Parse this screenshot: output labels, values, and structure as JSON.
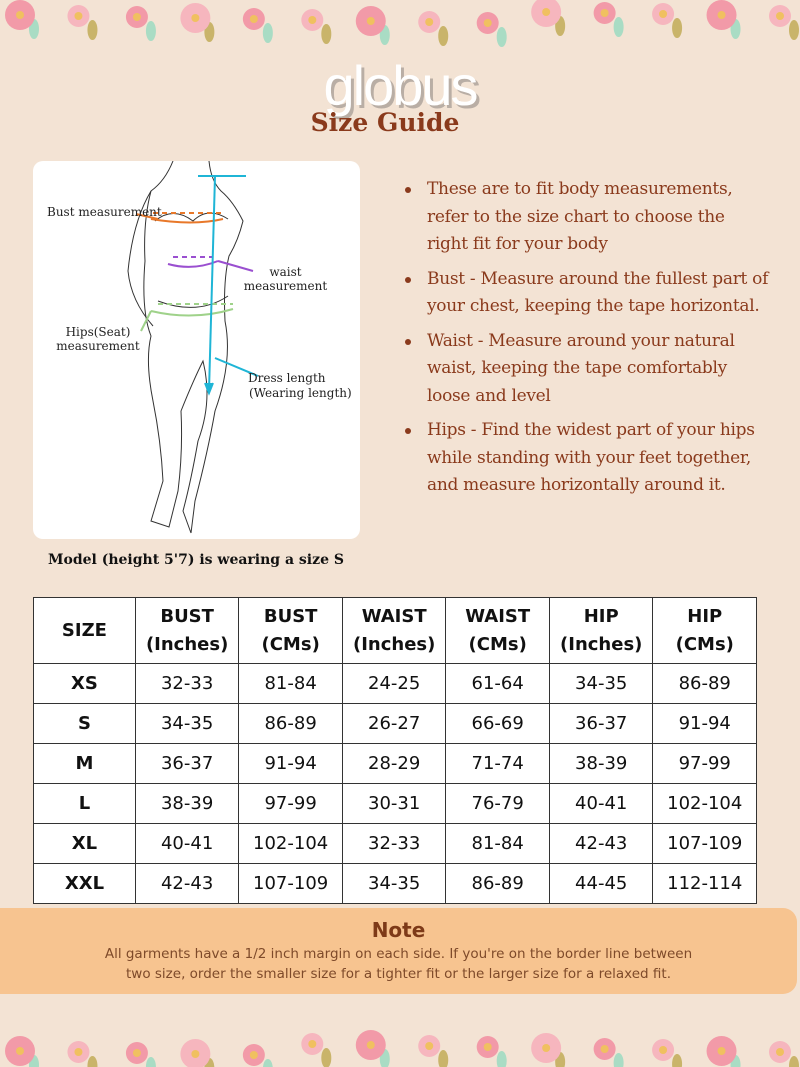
{
  "brand": {
    "logo": "globus"
  },
  "header": {
    "title": "Size Guide"
  },
  "figure": {
    "labels": {
      "bust": "Bust measurement",
      "waist": "waist measurement",
      "hips": "Hips(Seat) measurement",
      "dress_line1": "Dress length",
      "dress_line2": "(Wearing length)"
    },
    "colors": {
      "bust": "#e8782a",
      "waist": "#9a4fd0",
      "hips": "#9fd28a",
      "length": "#1fb5d6"
    },
    "caption": "Model (height 5'7) is wearing a size S"
  },
  "instructions": [
    "These are to fit body measurements, refer to the size chart to choose the right fit for your body",
    "Bust - Measure around the fullest part of your chest, keeping the tape horizontal.",
    "Waist - Measure around your natural waist, keeping the tape comfortably loose and level",
    "Hips - Find the widest part of your hips while standing with your feet together, and measure horizontally around it."
  ],
  "table": {
    "headers": [
      [
        "SIZE",
        ""
      ],
      [
        "BUST",
        "(Inches)"
      ],
      [
        "BUST",
        "(CMs)"
      ],
      [
        "WAIST",
        "(Inches)"
      ],
      [
        "WAIST",
        "(CMs)"
      ],
      [
        "HIP",
        "(Inches)"
      ],
      [
        "HIP",
        "(CMs)"
      ]
    ],
    "rows": [
      [
        "XS",
        "32-33",
        "81-84",
        "24-25",
        "61-64",
        "34-35",
        "86-89"
      ],
      [
        "S",
        "34-35",
        "86-89",
        "26-27",
        "66-69",
        "36-37",
        "91-94"
      ],
      [
        "M",
        "36-37",
        "91-94",
        "28-29",
        "71-74",
        "38-39",
        "97-99"
      ],
      [
        "L",
        "38-39",
        "97-99",
        "30-31",
        "76-79",
        "40-41",
        "102-104"
      ],
      [
        "XL",
        "40-41",
        "102-104",
        "32-33",
        "81-84",
        "42-43",
        "107-109"
      ],
      [
        "XXL",
        "42-43",
        "107-109",
        "34-35",
        "86-89",
        "44-45",
        "112-114"
      ]
    ]
  },
  "note": {
    "title": "Note",
    "text_line1": "All garments have a 1/2 inch margin on each side. If you're on the border line between",
    "text_line2": "two size, order the smaller size for a tighter fit or the larger size for a relaxed fit."
  }
}
